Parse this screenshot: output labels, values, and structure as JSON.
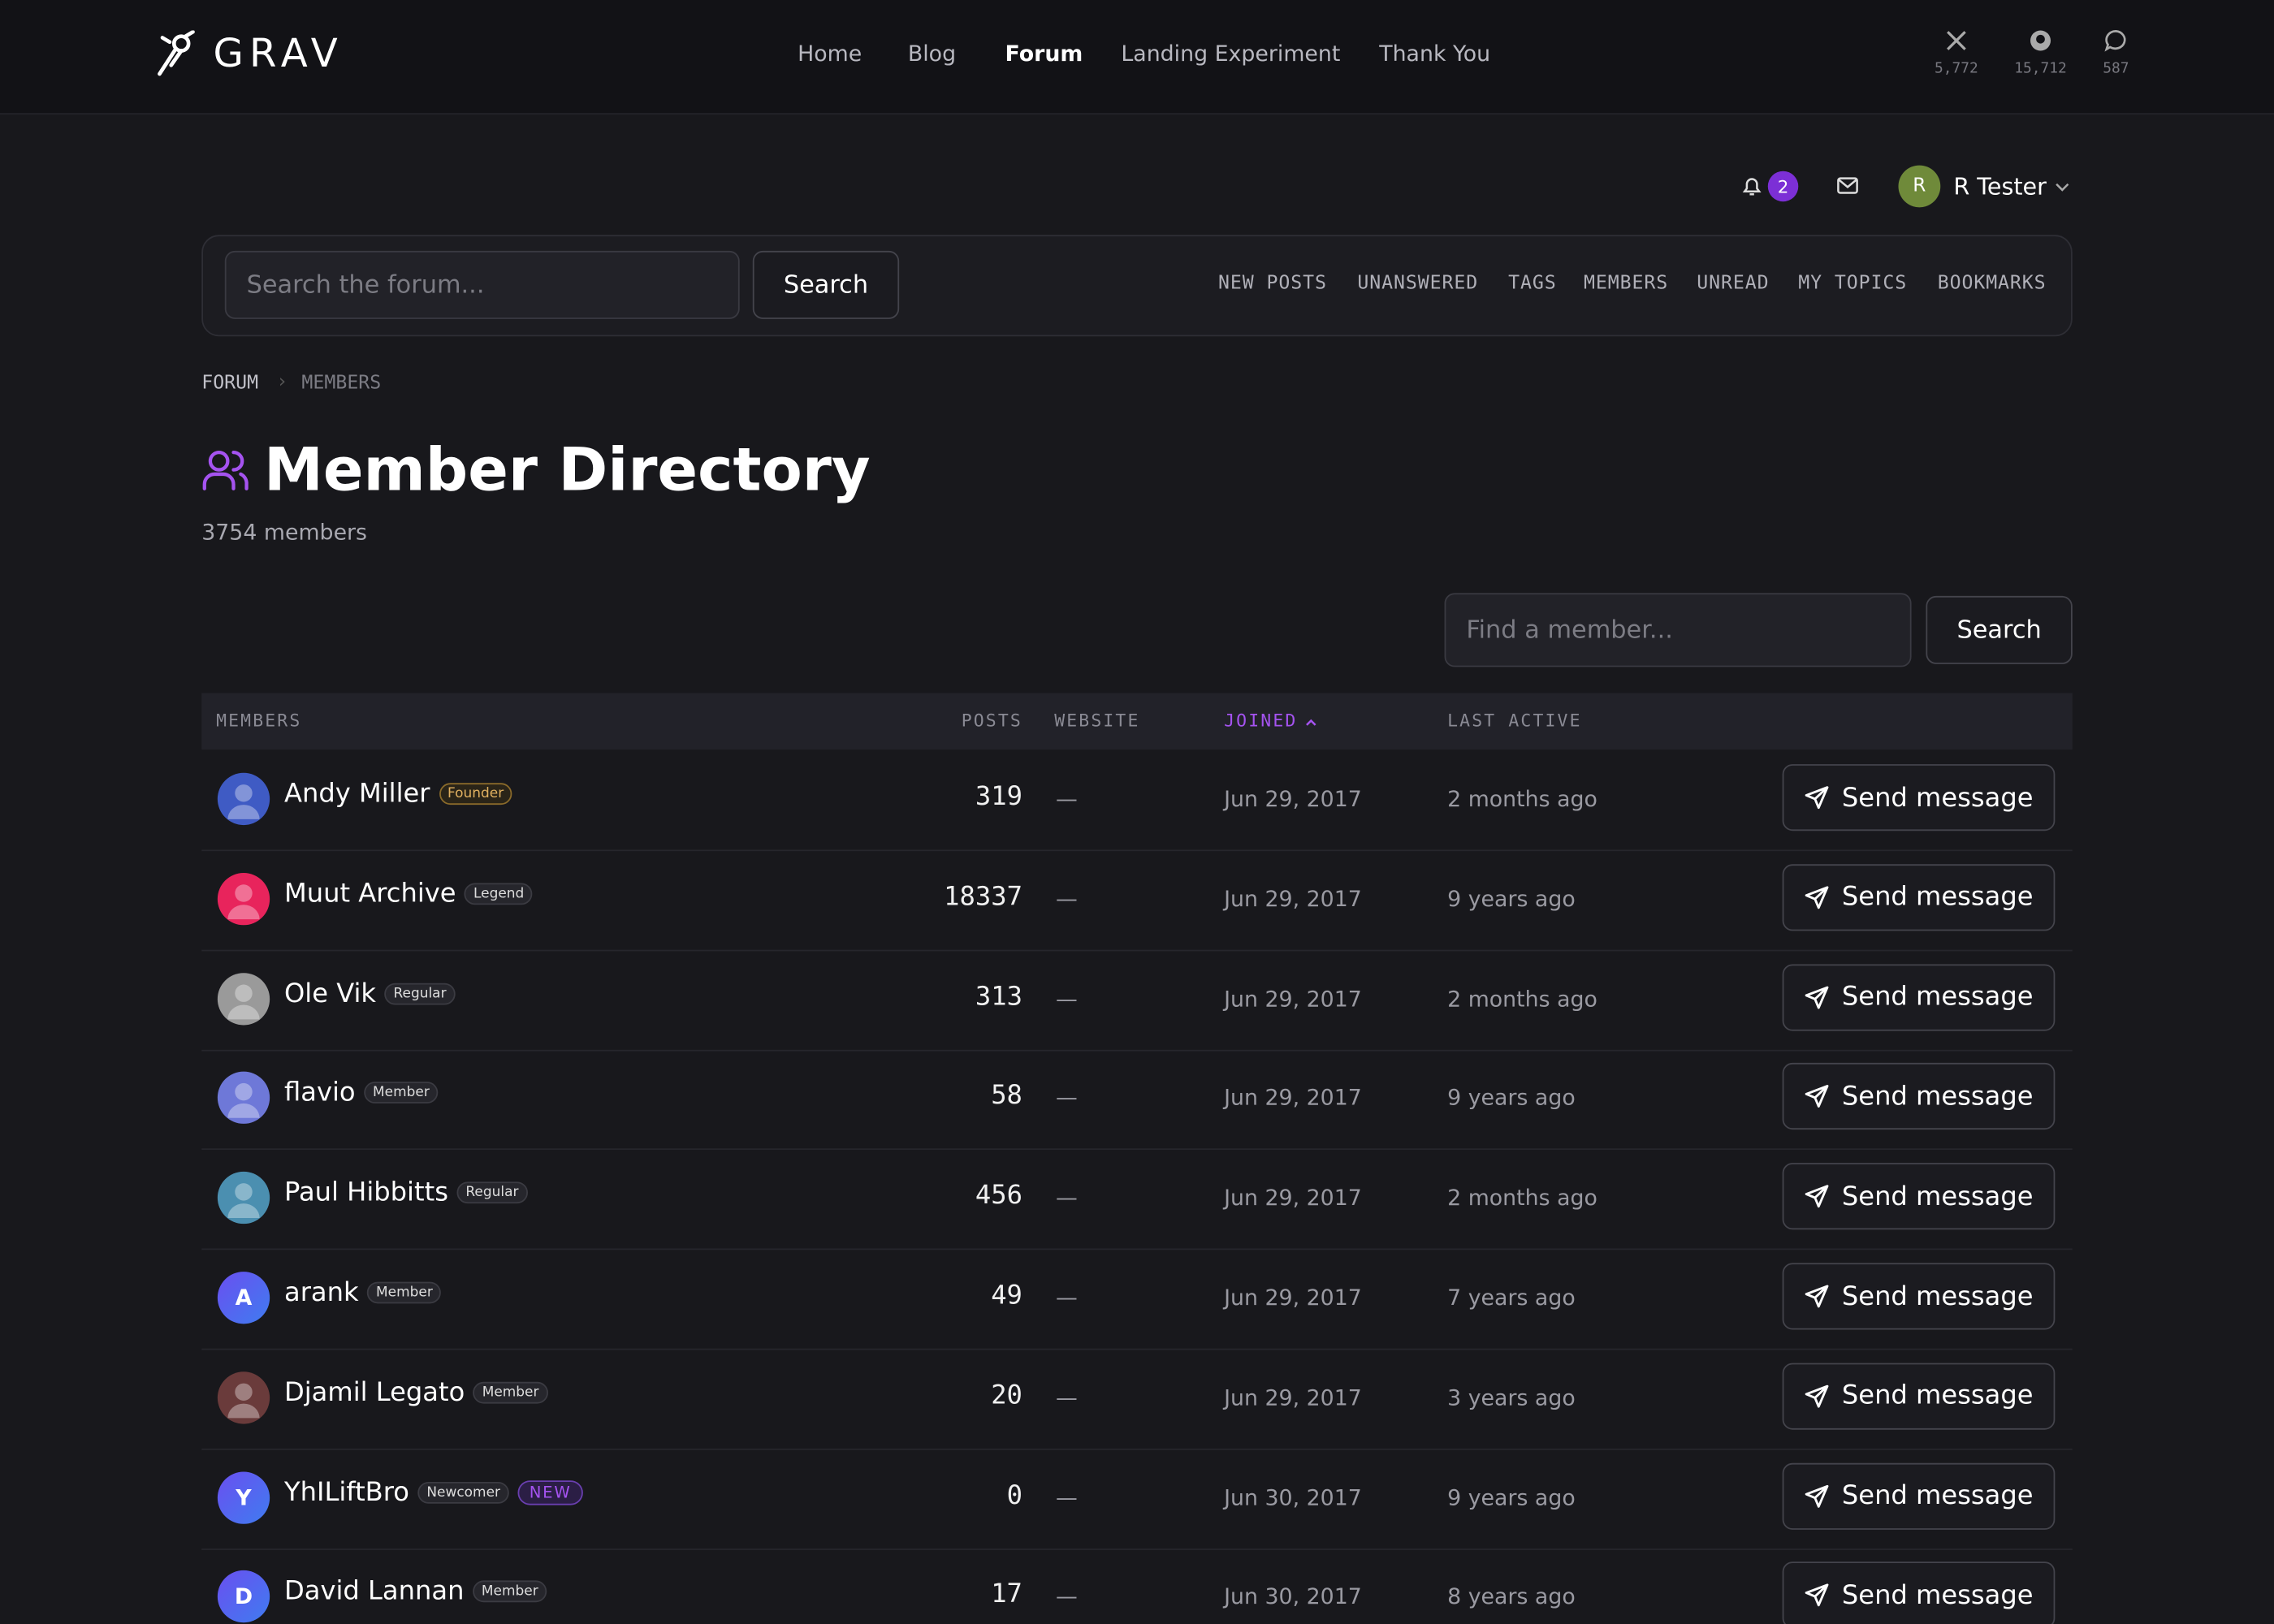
{
  "header": {
    "logo": "GRAV",
    "nav": [
      "Home",
      "Blog",
      "Forum",
      "Landing Experiment",
      "Thank You"
    ],
    "active_nav": 2,
    "stats": [
      "5,772",
      "15,712",
      "587"
    ]
  },
  "user": {
    "notifications": 2,
    "initial": "R",
    "name": "R Tester"
  },
  "search": {
    "placeholder": "Search the forum...",
    "button": "Search"
  },
  "forum_nav": [
    "NEW POSTS",
    "UNANSWERED",
    "TAGS",
    "MEMBERS",
    "UNREAD",
    "MY TOPICS",
    "BOOKMARKS"
  ],
  "breadcrumb": [
    "FORUM",
    "MEMBERS"
  ],
  "page": {
    "title": "Member Directory",
    "count": "3754 members"
  },
  "member_search": {
    "placeholder": "Find a member...",
    "button": "Search"
  },
  "table": {
    "columns": [
      "MEMBERS",
      "POSTS",
      "WEBSITE",
      "JOINED",
      "LAST ACTIVE"
    ],
    "sorted_column": 3,
    "rows": [
      {
        "name": "Andy Miller",
        "badge": "Founder",
        "posts": 319,
        "website": "—",
        "joined": "Jun 29, 2017",
        "last_active": "2 months ago",
        "action": "Send message",
        "avatar_color": "#3f5bc4"
      },
      {
        "name": "Muut Archive",
        "badge": "Legend",
        "posts": 18337,
        "website": "—",
        "joined": "Jun 29, 2017",
        "last_active": "9 years ago",
        "action": "Send message",
        "avatar_color": "#e8245c"
      },
      {
        "name": "Ole Vik",
        "badge": "Regular",
        "posts": 313,
        "website": "—",
        "joined": "Jun 29, 2017",
        "last_active": "2 months ago",
        "action": "Send message",
        "avatar_color": "#9a9a9a"
      },
      {
        "name": "flavio",
        "badge": "Member",
        "posts": 58,
        "website": "—",
        "joined": "Jun 29, 2017",
        "last_active": "9 years ago",
        "action": "Send message",
        "avatar_color": "#6e78d8"
      },
      {
        "name": "Paul Hibbitts",
        "badge": "Regular",
        "posts": 456,
        "website": "—",
        "joined": "Jun 29, 2017",
        "last_active": "2 months ago",
        "action": "Send message",
        "avatar_color": "#4b8fb0"
      },
      {
        "name": "arank",
        "badge": "Member",
        "posts": 49,
        "website": "—",
        "joined": "Jun 29, 2017",
        "last_active": "7 years ago",
        "action": "Send message",
        "initial": "A",
        "avatar_color": "#6a4ff0"
      },
      {
        "name": "Djamil Legato",
        "badge": "Member",
        "posts": 20,
        "website": "—",
        "joined": "Jun 29, 2017",
        "last_active": "3 years ago",
        "action": "Send message",
        "avatar_color": "#6a3b3b"
      },
      {
        "name": "YhILiftBro",
        "badge": "Newcomer",
        "new_label": "NEW",
        "posts": 0,
        "website": "—",
        "joined": "Jun 30, 2017",
        "last_active": "9 years ago",
        "action": "Send message",
        "initial": "Y",
        "avatar_color": "#6a4ff0"
      },
      {
        "name": "David Lannan",
        "badge": "Member",
        "posts": 17,
        "website": "—",
        "joined": "Jun 30, 2017",
        "last_active": "8 years ago",
        "action": "Send message",
        "initial": "D",
        "avatar_color": "#6a4ff0"
      }
    ]
  }
}
